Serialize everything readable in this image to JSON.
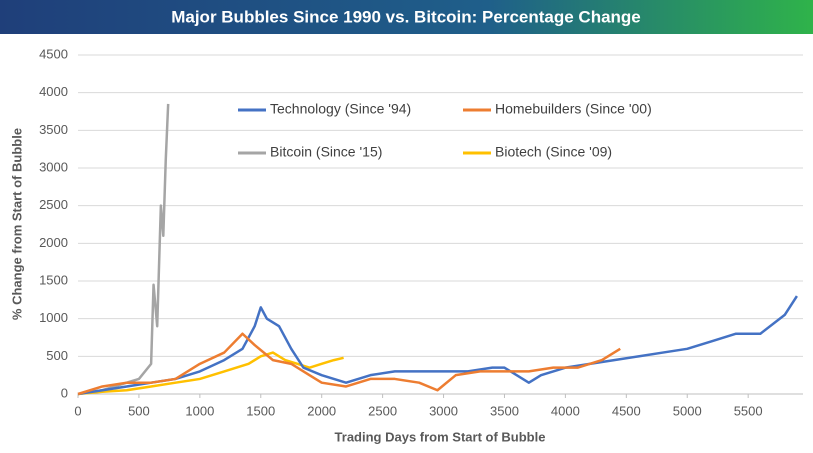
{
  "chart_data": {
    "type": "line",
    "title": "Major Bubbles Since 1990 vs. Bitcoin: Percentage Change",
    "x_label": "Trading Days from Start of Bubble",
    "y_label": "% Change from Start of Bubble",
    "xlim": [
      0,
      5950
    ],
    "ylim": [
      0,
      4500
    ],
    "xticks": [
      0,
      500,
      1000,
      1500,
      2000,
      2500,
      3000,
      3500,
      4000,
      4500,
      5000,
      5500
    ],
    "yticks": [
      0,
      500,
      1000,
      1500,
      2000,
      2500,
      3000,
      3500,
      4000,
      4500
    ],
    "grid": true,
    "legend": "top",
    "series": [
      {
        "name": "Technology (Since '94)",
        "color": "#4472c4",
        "x": [
          0,
          200,
          400,
          600,
          800,
          1000,
          1200,
          1350,
          1450,
          1500,
          1550,
          1650,
          1750,
          1850,
          2000,
          2200,
          2400,
          2600,
          2800,
          3000,
          3200,
          3400,
          3500,
          3700,
          3800,
          4000,
          4200,
          4400,
          4600,
          4800,
          5000,
          5200,
          5400,
          5600,
          5800,
          5900
        ],
        "values": [
          0,
          50,
          100,
          150,
          200,
          300,
          450,
          600,
          900,
          1150,
          1000,
          900,
          600,
          350,
          250,
          150,
          250,
          300,
          300,
          300,
          300,
          350,
          350,
          150,
          250,
          350,
          400,
          450,
          500,
          550,
          600,
          700,
          800,
          800,
          1050,
          1300
        ]
      },
      {
        "name": "Homebuilders (Since '00)",
        "color": "#ed7d31",
        "x": [
          0,
          200,
          400,
          600,
          800,
          1000,
          1200,
          1350,
          1450,
          1600,
          1750,
          1900,
          2000,
          2200,
          2400,
          2600,
          2800,
          2950,
          3100,
          3300,
          3500,
          3700,
          3900,
          4100,
          4300,
          4450
        ],
        "values": [
          0,
          100,
          150,
          150,
          200,
          400,
          550,
          800,
          650,
          450,
          400,
          250,
          150,
          100,
          200,
          200,
          150,
          50,
          250,
          300,
          300,
          300,
          350,
          350,
          450,
          600
        ]
      },
      {
        "name": "Bitcoin (Since '15)",
        "color": "#a5a5a5",
        "x": [
          0,
          200,
          300,
          400,
          500,
          600,
          620,
          650,
          680,
          700,
          720,
          740
        ],
        "values": [
          0,
          50,
          100,
          150,
          200,
          400,
          1450,
          900,
          2500,
          2100,
          3100,
          3850
        ]
      },
      {
        "name": "Biotech (Since '09)",
        "color": "#ffc000",
        "x": [
          0,
          200,
          400,
          600,
          800,
          1000,
          1200,
          1400,
          1500,
          1600,
          1700,
          1800,
          1900,
          2000,
          2100,
          2180
        ],
        "values": [
          0,
          30,
          50,
          100,
          150,
          200,
          300,
          400,
          500,
          550,
          450,
          400,
          350,
          400,
          450,
          480
        ]
      }
    ]
  }
}
